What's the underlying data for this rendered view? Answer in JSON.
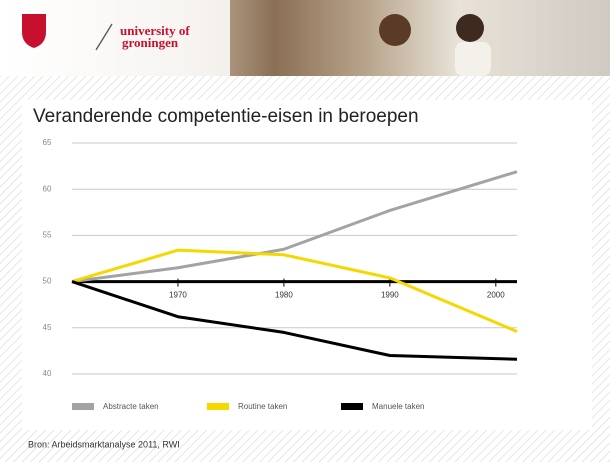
{
  "header": {
    "logo_line1": "university of",
    "logo_line2": "groningen"
  },
  "chart_data": {
    "type": "line",
    "title": "Veranderende competentie-eisen in beroepen",
    "x": [
      1960,
      1970,
      1980,
      1990,
      2002
    ],
    "series": [
      {
        "name": "Abstracte taken",
        "color": "#a3a3a3",
        "values": [
          50,
          51.5,
          53.5,
          57.7,
          61.9
        ]
      },
      {
        "name": "Routine taken",
        "color": "#f5d800",
        "values": [
          50,
          53.4,
          52.9,
          50.4,
          44.6
        ]
      },
      {
        "name": "Manuele taken",
        "color": "#000000",
        "values": [
          50,
          46.2,
          44.5,
          42.0,
          41.6
        ]
      }
    ],
    "xlim": [
      1960,
      2002
    ],
    "xticks": [
      1970,
      1980,
      1990,
      2000
    ],
    "ylim": [
      40,
      65
    ],
    "yticks": [
      40,
      45,
      50,
      55,
      60,
      65
    ],
    "xaxis_crosses": 50,
    "grid": true,
    "legend": "bottom"
  },
  "footer": {
    "source": "Bron: Arbeidsmarktanalyse 2011, RWI"
  }
}
